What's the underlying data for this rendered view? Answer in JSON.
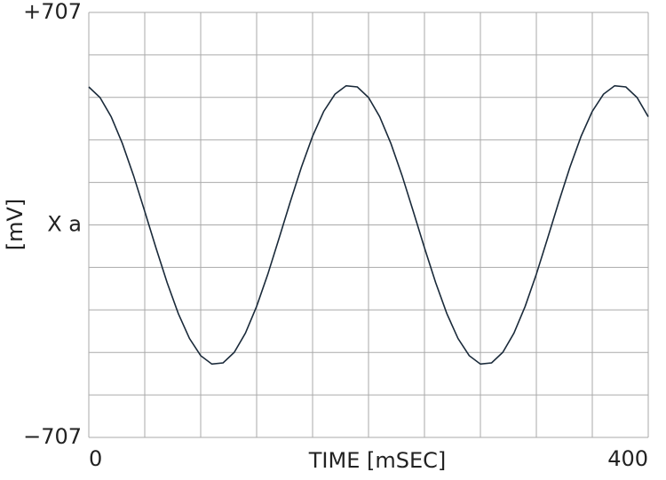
{
  "chart_data": {
    "type": "line",
    "x_label": "TIME [mSEC]",
    "y_label": "[mV]",
    "x": [
      0,
      8,
      16,
      24,
      32,
      40,
      48,
      56,
      64,
      72,
      80,
      88,
      96,
      104,
      112,
      120,
      128,
      136,
      144,
      152,
      160,
      168,
      176,
      184,
      192,
      200,
      208,
      216,
      224,
      232,
      240,
      248,
      256,
      264,
      272,
      280,
      288,
      296,
      304,
      312,
      320,
      328,
      336,
      344,
      352,
      360,
      368,
      376,
      384,
      392,
      400
    ],
    "series": [
      {
        "color": "#1a2a3a",
        "values": [
          459,
          424,
          360,
          271,
          164,
          45,
          -76,
          -192,
          -295,
          -378,
          -435,
          -463,
          -459,
          -424,
          -360,
          -271,
          -164,
          -45,
          76,
          192,
          295,
          378,
          435,
          463,
          459,
          424,
          360,
          271,
          164,
          45,
          -76,
          -192,
          -295,
          -378,
          -435,
          -463,
          -459,
          -424,
          -360,
          -271,
          -164,
          -45,
          76,
          192,
          295,
          378,
          435,
          463,
          459,
          424,
          360
        ]
      }
    ],
    "xlim": [
      0,
      400
    ],
    "ylim": [
      -707,
      707
    ],
    "xticks": [
      0,
      400
    ],
    "yticks": [
      {
        "value": 707,
        "label": "+707"
      },
      {
        "value": 0,
        "label": "X a"
      },
      {
        "value": -707,
        "label": "−707"
      }
    ],
    "grid": true,
    "grid_divisions": [
      10,
      10
    ]
  }
}
